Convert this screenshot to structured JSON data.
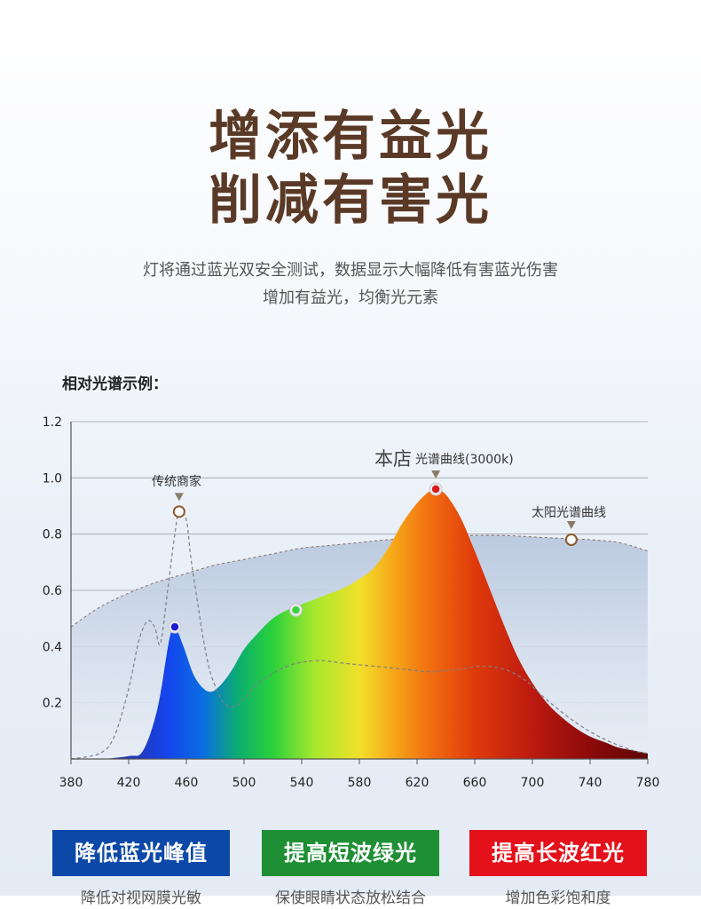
{
  "header": {
    "title_line1": "增添有益光",
    "title_line2": "削减有害光",
    "subtitle_line1": "灯将通过蓝光双安全测试，数据显示大幅降低有害蓝光伤害",
    "subtitle_line2": "增加有益光，均衡光元素"
  },
  "section_label": "相对光谱示例：",
  "chart_data": {
    "type": "area",
    "xlim": [
      380,
      780
    ],
    "ylim": [
      0,
      1.2
    ],
    "x_ticks": [
      "380",
      "420",
      "460",
      "500",
      "540",
      "580",
      "620",
      "660",
      "700",
      "740",
      "780"
    ],
    "y_ticks": [
      "0.2",
      "0.4",
      "0.6",
      "0.8",
      "1.0",
      "1.2"
    ],
    "grid": true,
    "series": [
      {
        "label_main": "本店",
        "label_sub": "光谱曲线(3000k)",
        "style": "filled-spectrum",
        "x": [
          380,
          400,
          420,
          430,
          440,
          448,
          452,
          458,
          465,
          472,
          478,
          485,
          492,
          500,
          510,
          520,
          530,
          540,
          550,
          560,
          570,
          580,
          590,
          600,
          610,
          620,
          628,
          633,
          640,
          650,
          660,
          670,
          680,
          690,
          700,
          710,
          720,
          730,
          740,
          750,
          760,
          770,
          780
        ],
        "y": [
          0.0,
          0.0,
          0.01,
          0.03,
          0.18,
          0.42,
          0.47,
          0.4,
          0.3,
          0.25,
          0.24,
          0.27,
          0.32,
          0.39,
          0.45,
          0.5,
          0.53,
          0.55,
          0.57,
          0.59,
          0.61,
          0.64,
          0.68,
          0.75,
          0.84,
          0.91,
          0.95,
          0.96,
          0.94,
          0.86,
          0.74,
          0.61,
          0.48,
          0.36,
          0.27,
          0.2,
          0.15,
          0.11,
          0.08,
          0.06,
          0.04,
          0.03,
          0.02
        ],
        "markers": [
          {
            "x": 452,
            "y": 0.47,
            "color": "#1a1ad0"
          },
          {
            "x": 536,
            "y": 0.53,
            "color": "#3cd23c"
          },
          {
            "x": 633,
            "y": 0.96,
            "color": "#d81a1a"
          }
        ],
        "arrow_at": [
          633,
          0.96
        ]
      },
      {
        "name": "传统商家",
        "style": "dashed",
        "x": [
          380,
          400,
          410,
          420,
          427,
          433,
          438,
          442,
          447,
          452,
          455,
          460,
          463,
          468,
          472,
          476,
          480,
          486,
          495,
          510,
          530,
          550,
          570,
          590,
          610,
          630,
          650,
          665,
          680,
          695,
          710,
          730,
          750,
          770,
          780
        ],
        "y": [
          0.0,
          0.02,
          0.08,
          0.25,
          0.42,
          0.49,
          0.47,
          0.41,
          0.6,
          0.8,
          0.88,
          0.85,
          0.72,
          0.55,
          0.42,
          0.32,
          0.26,
          0.2,
          0.19,
          0.27,
          0.33,
          0.35,
          0.34,
          0.33,
          0.32,
          0.31,
          0.32,
          0.33,
          0.32,
          0.28,
          0.21,
          0.13,
          0.07,
          0.03,
          0.02
        ],
        "markers": [
          {
            "x": 455,
            "y": 0.88,
            "color": "#8b5a2b",
            "hollow": true
          }
        ],
        "arrow_at": [
          455,
          0.88
        ]
      },
      {
        "name": "太阳光谱曲线",
        "style": "shaded-area",
        "x": [
          380,
          400,
          420,
          440,
          460,
          480,
          500,
          520,
          540,
          560,
          580,
          600,
          620,
          640,
          660,
          680,
          700,
          720,
          740,
          760,
          780
        ],
        "y": [
          0.47,
          0.54,
          0.59,
          0.63,
          0.66,
          0.69,
          0.71,
          0.73,
          0.75,
          0.76,
          0.77,
          0.78,
          0.785,
          0.79,
          0.795,
          0.795,
          0.79,
          0.785,
          0.78,
          0.77,
          0.74
        ],
        "markers": [
          {
            "x": 727,
            "y": 0.78,
            "color": "#8b5a2b",
            "hollow": true
          }
        ],
        "arrow_at": [
          727,
          0.78
        ]
      }
    ]
  },
  "badges": [
    {
      "label": "降低蓝光峰值",
      "color": "#0c48a8"
    },
    {
      "label": "提高短波绿光",
      "color": "#1e8f34"
    },
    {
      "label": "提高长波红光",
      "color": "#e4101a"
    }
  ],
  "descriptions": [
    "降低对视网膜光敏",
    "保使眼睛状态放松结合",
    "增加色彩饱和度"
  ]
}
